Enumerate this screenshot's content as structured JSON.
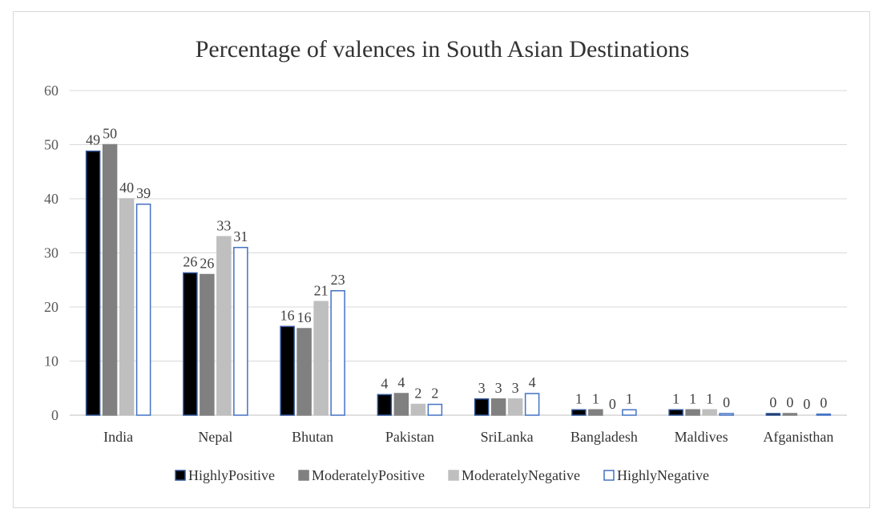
{
  "chart_data": {
    "type": "bar",
    "title": "Percentage of valences in South Asian Destinations",
    "xlabel": "",
    "ylabel": "",
    "ylim": [
      0,
      60
    ],
    "yticks": [
      0,
      10,
      20,
      30,
      40,
      50,
      60
    ],
    "grid": true,
    "legend_position": "bottom",
    "categories": [
      "India",
      "Nepal",
      "Bhutan",
      "Pakistan",
      "SriLanka",
      "Bangladesh",
      "Maldives",
      "Afganisthan"
    ],
    "series": [
      {
        "name": "HighlyPositive",
        "values": [
          48.8,
          26.3,
          16.4,
          3.8,
          3.0,
          1.0,
          1.0,
          0.3
        ],
        "labels": [
          "49",
          "26",
          "16",
          "4",
          "3",
          "1",
          "1",
          "0"
        ],
        "fill": "#000000",
        "stroke": "#2f5597"
      },
      {
        "name": "ModeratelyPositive",
        "values": [
          50.0,
          26.0,
          16.0,
          4.0,
          3.0,
          1.0,
          1.0,
          0.3
        ],
        "labels": [
          "50",
          "26",
          "16",
          "4",
          "3",
          "1",
          "1",
          "0"
        ],
        "fill": "#808080",
        "stroke": "#808080"
      },
      {
        "name": "ModeratelyNegative",
        "values": [
          40.0,
          33.0,
          21.0,
          2.0,
          3.0,
          0.0,
          1.0,
          0.0
        ],
        "labels": [
          "40",
          "33",
          "21",
          "2",
          "3",
          "0",
          "1",
          "0"
        ],
        "fill": "#bfbfbf",
        "stroke": "#bfbfbf"
      },
      {
        "name": "HighlyNegative",
        "values": [
          39.0,
          31.0,
          23.0,
          2.0,
          4.0,
          1.0,
          0.3,
          0.2
        ],
        "labels": [
          "39",
          "31",
          "23",
          "2",
          "4",
          "1",
          "0",
          "0"
        ],
        "fill": "#ffffff",
        "stroke": "#4472c4"
      }
    ]
  }
}
